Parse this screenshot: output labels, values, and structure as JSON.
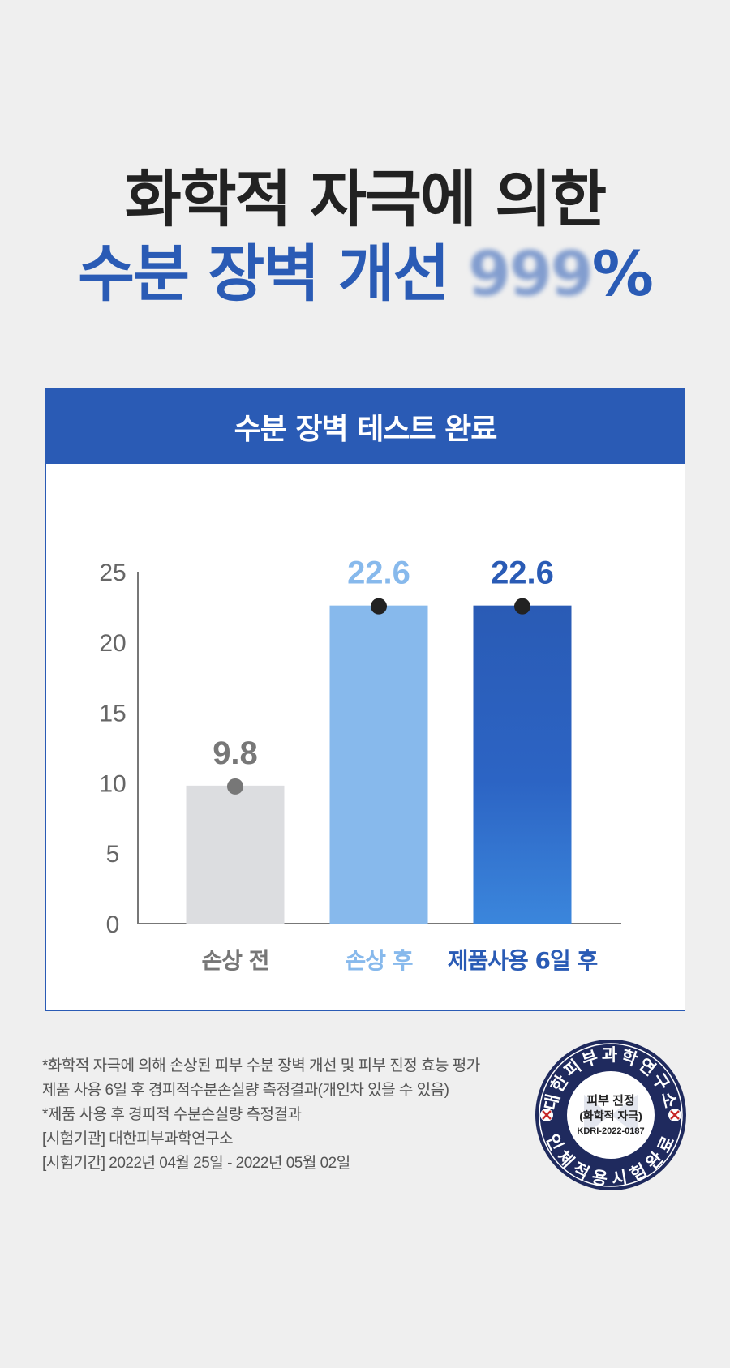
{
  "headline": {
    "line1": "화학적 자극에 의한",
    "line2": "수분 장벽 개선",
    "figure": "999",
    "percent": "%"
  },
  "panel": {
    "title": "수분 장벽 테스트 완료"
  },
  "chart_data": {
    "type": "bar",
    "title": "수분 장벽 테스트 완료",
    "categories": [
      "손상 전",
      "손상 후",
      "제품사용 6일 후"
    ],
    "values": [
      9.8,
      22.6,
      22.6
    ],
    "data_labels": [
      "9.8",
      "22.6",
      "22.6"
    ],
    "yticks": [
      "0",
      "5",
      "10",
      "15",
      "20",
      "25"
    ],
    "ylim": [
      0,
      25
    ],
    "bar_colors": [
      "#dcdde0",
      "#87b9ec",
      "#2b63bf"
    ],
    "label_colors": [
      "#777777",
      "#87b9ec",
      "#2a5bb5"
    ],
    "marker_colors": [
      "#777777",
      "#222222",
      "#222222"
    ],
    "grid": false,
    "legend": "none"
  },
  "notes": [
    "*화학적 자극에 의해 손상된 피부 수분 장벽 개선 및 피부 진정 효능 평가",
    " 제품 사용 6일 후 경피적수분손실량 측정결과(개인차 있을 수 있음)",
    "*제품 사용 후 경피적 수분손실량 측정결과",
    "[시험기관] 대한피부과학연구소",
    "[시험기간] 2022년 04월 25일 - 2022년 05월 02일"
  ],
  "seal": {
    "ring_top": "대한피부과학연구소",
    "ring_bottom": "인체적용시험완료",
    "center_line1": "피부 진정",
    "center_line2": "(화학적 자극)",
    "code": "KDRI-2022-0187"
  },
  "colors": {
    "brand": "#2a5bb5",
    "light_blue": "#87b9ec",
    "gray_bar": "#dcdde0",
    "text_dark": "#222222",
    "background": "#efefef"
  }
}
